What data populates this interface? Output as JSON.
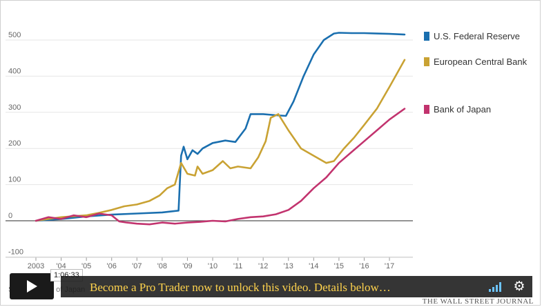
{
  "chart_data": {
    "type": "line",
    "title": "",
    "xlabel": "",
    "ylabel": "",
    "ylim": [
      -100,
      550
    ],
    "xlim": [
      2003.0,
      2017.75
    ],
    "y_ticks": [
      -100,
      0,
      100,
      200,
      300,
      400,
      500
    ],
    "y_tick_labels": [
      "-100",
      "0",
      "100",
      "200",
      "300",
      "400",
      "500"
    ],
    "x_ticks": [
      2003,
      2004,
      2005,
      2006,
      2007,
      2008,
      2009,
      2010,
      2011,
      2012,
      2013,
      2014,
      2015,
      2016,
      2017
    ],
    "x_tick_labels": [
      "2003",
      "'04",
      "'05",
      "'06",
      "'07",
      "'08",
      "'09",
      "'10",
      "'11",
      "'12",
      "'13",
      "'14",
      "'15",
      "'16",
      "'17"
    ],
    "grid": true,
    "legend": "right",
    "series": [
      {
        "name": "U.S. Federal Reserve",
        "color": "#1a6faf",
        "x": [
          2003.0,
          2004.0,
          2005.0,
          2006.0,
          2007.0,
          2008.0,
          2008.65,
          2008.75,
          2008.85,
          2009.0,
          2009.2,
          2009.4,
          2009.6,
          2010.0,
          2010.5,
          2010.9,
          2011.3,
          2011.5,
          2012.0,
          2012.5,
          2012.9,
          2013.2,
          2013.6,
          2014.0,
          2014.4,
          2014.8,
          2015.0,
          2015.5,
          2016.0,
          2016.5,
          2017.0,
          2017.6
        ],
        "y": [
          0,
          5,
          12,
          17,
          20,
          23,
          28,
          180,
          205,
          170,
          195,
          185,
          200,
          215,
          222,
          218,
          255,
          295,
          295,
          292,
          290,
          330,
          400,
          460,
          500,
          518,
          520,
          519,
          519,
          518,
          517,
          515
        ]
      },
      {
        "name": "European Central Bank",
        "color": "#c9a233",
        "x": [
          2003.0,
          2003.5,
          2004.0,
          2005.0,
          2005.5,
          2006.0,
          2006.5,
          2007.0,
          2007.5,
          2007.9,
          2008.2,
          2008.5,
          2008.75,
          2009.0,
          2009.3,
          2009.4,
          2009.6,
          2010.0,
          2010.4,
          2010.7,
          2011.0,
          2011.5,
          2011.8,
          2012.1,
          2012.3,
          2012.6,
          2013.0,
          2013.5,
          2014.0,
          2014.5,
          2014.8,
          2015.2,
          2015.6,
          2016.0,
          2016.5,
          2017.0,
          2017.6
        ],
        "y": [
          0,
          5,
          10,
          15,
          22,
          30,
          40,
          45,
          55,
          70,
          90,
          100,
          160,
          130,
          125,
          150,
          130,
          140,
          165,
          145,
          150,
          145,
          175,
          220,
          285,
          295,
          250,
          200,
          180,
          160,
          165,
          200,
          230,
          265,
          310,
          370,
          445
        ]
      },
      {
        "name": "Bank of Japan",
        "color": "#c2336e",
        "x": [
          2003.0,
          2003.5,
          2004.0,
          2004.5,
          2005.0,
          2005.5,
          2006.0,
          2006.3,
          2006.6,
          2007.0,
          2007.5,
          2008.0,
          2008.5,
          2009.0,
          2009.5,
          2010.0,
          2010.5,
          2011.0,
          2011.5,
          2012.0,
          2012.5,
          2013.0,
          2013.5,
          2014.0,
          2014.5,
          2015.0,
          2015.5,
          2016.0,
          2016.5,
          2017.0,
          2017.6
        ],
        "y": [
          0,
          10,
          5,
          15,
          10,
          20,
          15,
          -2,
          -5,
          -8,
          -10,
          -5,
          -8,
          -5,
          -3,
          0,
          -2,
          5,
          10,
          12,
          18,
          30,
          55,
          90,
          120,
          160,
          190,
          220,
          250,
          280,
          310
        ]
      }
    ],
    "source_label": "Source: Bank of Japan"
  },
  "brand": "THE WALL STREET JOURNAL",
  "video": {
    "timestamp": "1:06:33",
    "promo": "Become a Pro Trader now to unlock this video. Details below…",
    "volume_icon": "volume-bars-icon",
    "settings_icon": "gear-icon",
    "play_icon": "play-icon",
    "accent_color": "#6cc4ff",
    "promo_color": "#ffd34d"
  }
}
